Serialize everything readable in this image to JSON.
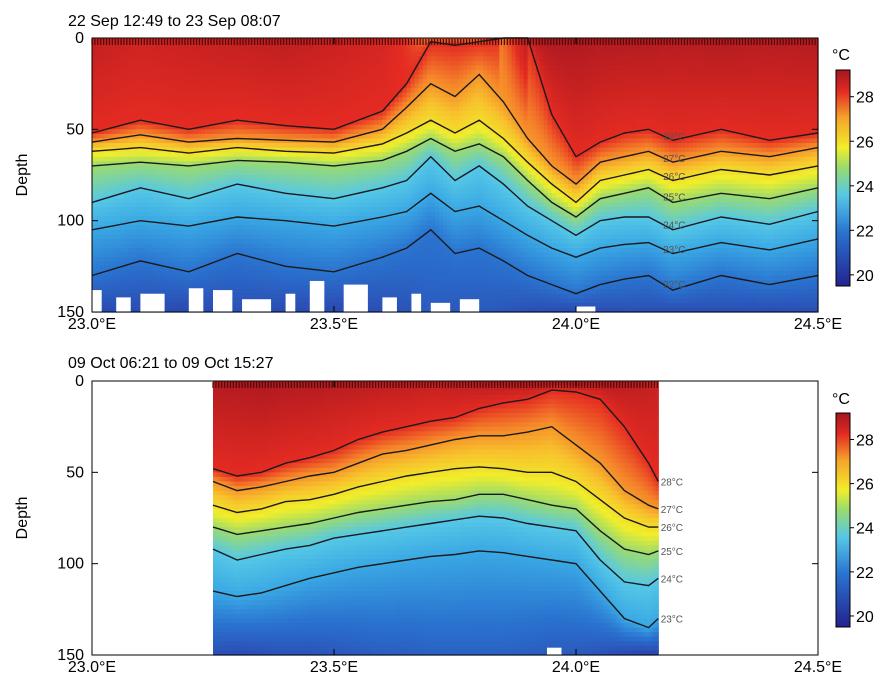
{
  "chart_data": [
    {
      "type": "heatmap",
      "subtype": "filled-contour depth section",
      "title": "22 Sep 12:49 to 23 Sep 08:07",
      "xlabel": "",
      "ylabel": "Depth",
      "x_ticks": [
        "23.0°E",
        "23.5°E",
        "24.0°E",
        "24.5°E"
      ],
      "x_tick_values": [
        23.0,
        23.5,
        24.0,
        24.5
      ],
      "xlim": [
        23.0,
        24.5
      ],
      "y_ticks": [
        "0",
        "50",
        "100",
        "150"
      ],
      "y_tick_values": [
        0,
        50,
        100,
        150
      ],
      "ylim": [
        150,
        0
      ],
      "colorbar": {
        "label": "°C",
        "ticks": [
          "20",
          "22",
          "24",
          "26",
          "28"
        ],
        "range": [
          19.5,
          29.2
        ]
      },
      "data_xlim": [
        23.0,
        24.5
      ],
      "contour_levels": [
        22,
        23,
        24,
        25,
        26,
        27,
        28
      ],
      "contour_labels": [
        "28°C",
        "27°C",
        "26°C",
        "25°C",
        "24°C",
        "23°C",
        "22°C"
      ],
      "x": [
        23.0,
        23.1,
        23.2,
        23.3,
        23.4,
        23.5,
        23.6,
        23.65,
        23.7,
        23.75,
        23.8,
        23.85,
        23.9,
        23.95,
        24.0,
        24.05,
        24.1,
        24.15,
        24.2,
        24.3,
        24.4,
        24.5
      ],
      "isotherm_depths": [
        {
          "level": 28,
          "depths": [
            52,
            45,
            50,
            45,
            48,
            50,
            40,
            25,
            2,
            4,
            2,
            0,
            0,
            42,
            65,
            57,
            52,
            50,
            56,
            50,
            56,
            52
          ]
        },
        {
          "level": 27,
          "depths": [
            57,
            53,
            57,
            55,
            56,
            57,
            50,
            38,
            25,
            32,
            20,
            35,
            55,
            70,
            80,
            68,
            65,
            62,
            68,
            62,
            65,
            60
          ]
        },
        {
          "level": 26,
          "depths": [
            62,
            60,
            63,
            60,
            62,
            63,
            58,
            52,
            45,
            52,
            45,
            55,
            68,
            80,
            90,
            78,
            75,
            72,
            78,
            72,
            75,
            70
          ]
        },
        {
          "level": 25,
          "depths": [
            70,
            68,
            70,
            67,
            68,
            70,
            67,
            62,
            55,
            62,
            58,
            65,
            78,
            90,
            98,
            88,
            85,
            82,
            90,
            85,
            88,
            82
          ]
        },
        {
          "level": 24,
          "depths": [
            90,
            82,
            88,
            80,
            85,
            88,
            82,
            78,
            65,
            78,
            70,
            80,
            92,
            100,
            108,
            100,
            98,
            98,
            105,
            98,
            102,
            95
          ]
        },
        {
          "level": 23,
          "depths": [
            105,
            100,
            103,
            98,
            100,
            103,
            98,
            95,
            85,
            95,
            92,
            100,
            108,
            115,
            120,
            115,
            113,
            112,
            118,
            112,
            116,
            110
          ]
        },
        {
          "level": 22,
          "depths": [
            130,
            122,
            128,
            118,
            125,
            128,
            120,
            115,
            105,
            118,
            115,
            122,
            130,
            135,
            140,
            135,
            132,
            130,
            138,
            130,
            135,
            130
          ]
        }
      ],
      "surface_temperature": [
        28.6,
        28.4,
        28.5,
        28.6,
        28.7,
        28.5,
        28.3,
        27.9,
        27.2,
        27.5,
        27.0,
        27.4,
        28.8,
        29.0,
        29.0,
        28.9,
        28.9,
        28.9,
        28.8,
        28.9,
        28.8,
        28.9
      ],
      "bottom_temperature": [
        20.8,
        20.9,
        20.8,
        21.0,
        20.9,
        20.8,
        21.0,
        21.1,
        21.4,
        21.2,
        21.3,
        21.2,
        21.0,
        20.9,
        20.8,
        20.9,
        21.0,
        21.0,
        20.9,
        21.0,
        20.9,
        21.0
      ],
      "no_data_below": [
        {
          "x": [
            23.0,
            23.02
          ],
          "depth": 138
        },
        {
          "x": [
            23.05,
            23.08
          ],
          "depth": 142
        },
        {
          "x": [
            23.1,
            23.15
          ],
          "depth": 140
        },
        {
          "x": [
            23.2,
            23.23
          ],
          "depth": 137
        },
        {
          "x": [
            23.25,
            23.29
          ],
          "depth": 138
        },
        {
          "x": [
            23.31,
            23.37
          ],
          "depth": 143
        },
        {
          "x": [
            23.4,
            23.42
          ],
          "depth": 140
        },
        {
          "x": [
            23.45,
            23.48
          ],
          "depth": 133
        },
        {
          "x": [
            23.52,
            23.57
          ],
          "depth": 135
        },
        {
          "x": [
            23.6,
            23.63
          ],
          "depth": 142
        },
        {
          "x": [
            23.66,
            23.68
          ],
          "depth": 140
        },
        {
          "x": [
            23.7,
            23.74
          ],
          "depth": 145
        },
        {
          "x": [
            23.76,
            23.8
          ],
          "depth": 143
        },
        {
          "x": [
            24.0,
            24.04
          ],
          "depth": 147
        }
      ]
    },
    {
      "type": "heatmap",
      "subtype": "filled-contour depth section",
      "title": "09 Oct 06:21 to 09 Oct 15:27",
      "xlabel": "",
      "ylabel": "Depth",
      "x_ticks": [
        "23.0°E",
        "23.5°E",
        "24.0°E",
        "24.5°E"
      ],
      "x_tick_values": [
        23.0,
        23.5,
        24.0,
        24.5
      ],
      "xlim": [
        23.0,
        24.5
      ],
      "y_ticks": [
        "0",
        "50",
        "100",
        "150"
      ],
      "y_tick_values": [
        0,
        50,
        100,
        150
      ],
      "ylim": [
        150,
        0
      ],
      "colorbar": {
        "label": "°C",
        "ticks": [
          "20",
          "22",
          "24",
          "26",
          "28"
        ],
        "range": [
          19.5,
          29.2
        ]
      },
      "data_xlim": [
        23.25,
        24.17
      ],
      "contour_levels": [
        23,
        24,
        25,
        26,
        27,
        28
      ],
      "contour_labels": [
        "28°C",
        "27°C",
        "26°C",
        "25°C",
        "24°C",
        "23°C"
      ],
      "x": [
        23.25,
        23.3,
        23.35,
        23.4,
        23.45,
        23.5,
        23.55,
        23.6,
        23.65,
        23.7,
        23.75,
        23.8,
        23.85,
        23.9,
        23.95,
        24.0,
        24.05,
        24.1,
        24.15,
        24.17
      ],
      "isotherm_depths": [
        {
          "level": 28,
          "depths": [
            48,
            52,
            50,
            45,
            42,
            38,
            32,
            28,
            25,
            22,
            20,
            15,
            12,
            10,
            5,
            6,
            10,
            25,
            45,
            55
          ]
        },
        {
          "level": 27,
          "depths": [
            55,
            60,
            58,
            55,
            52,
            50,
            45,
            40,
            38,
            35,
            32,
            30,
            30,
            28,
            25,
            35,
            45,
            60,
            68,
            70
          ]
        },
        {
          "level": 26,
          "depths": [
            68,
            72,
            70,
            66,
            65,
            62,
            58,
            55,
            52,
            50,
            48,
            47,
            48,
            50,
            50,
            55,
            65,
            75,
            80,
            80
          ]
        },
        {
          "level": 25,
          "depths": [
            80,
            84,
            82,
            80,
            78,
            75,
            72,
            70,
            68,
            66,
            65,
            62,
            62,
            65,
            68,
            70,
            82,
            92,
            95,
            93
          ]
        },
        {
          "level": 24,
          "depths": [
            92,
            98,
            95,
            92,
            90,
            86,
            84,
            82,
            80,
            78,
            76,
            74,
            75,
            78,
            80,
            82,
            98,
            110,
            112,
            108
          ]
        },
        {
          "level": 23,
          "depths": [
            115,
            118,
            116,
            112,
            108,
            105,
            102,
            100,
            98,
            96,
            95,
            93,
            94,
            96,
            98,
            100,
            115,
            130,
            135,
            130
          ]
        }
      ],
      "surface_temperature": [
        28.9,
        28.9,
        29.0,
        28.9,
        28.9,
        28.8,
        28.8,
        28.7,
        28.7,
        28.6,
        28.7,
        28.8,
        28.9,
        28.9,
        29.0,
        29.0,
        28.9,
        28.8,
        28.6,
        28.5
      ],
      "bottom_temperature": [
        21.0,
        20.9,
        21.0,
        21.1,
        21.1,
        21.2,
        21.3,
        21.4,
        21.4,
        21.5,
        21.5,
        21.5,
        21.5,
        21.4,
        21.3,
        21.3,
        21.1,
        20.8,
        20.6,
        20.7
      ],
      "no_data_below": [
        {
          "x": [
            23.94,
            23.97
          ],
          "depth": 146
        }
      ]
    }
  ]
}
